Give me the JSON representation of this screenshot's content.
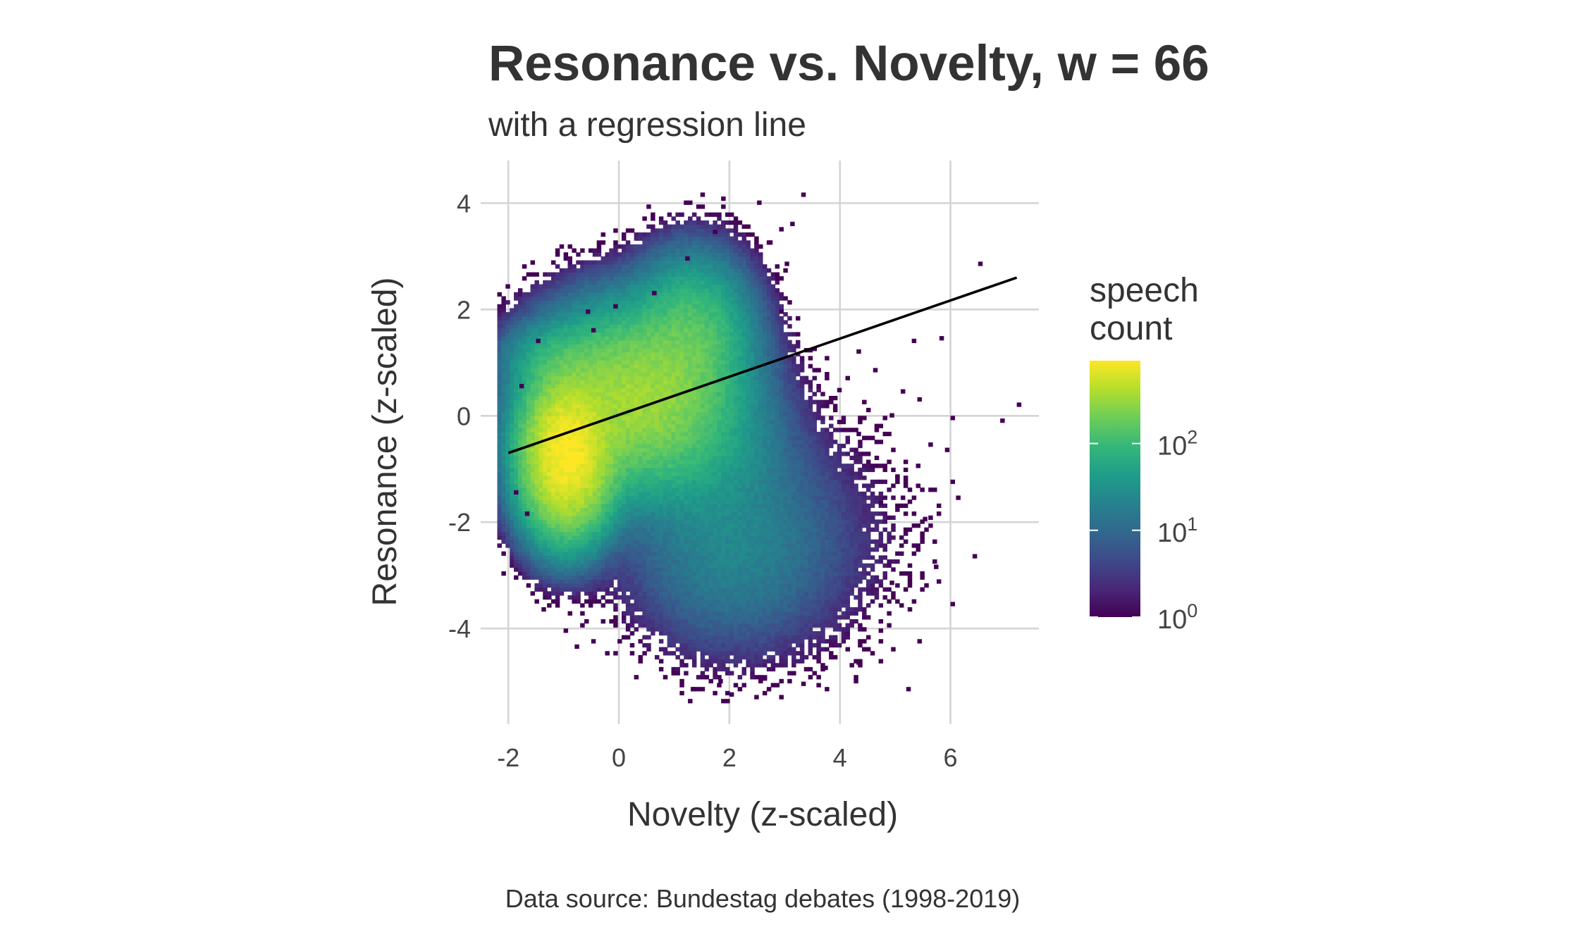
{
  "chart_data": {
    "type": "heatmap",
    "subtype": "2d-binned-density-with-regression-line",
    "title": "Resonance vs. Novelty, w = 66",
    "subtitle": "with a regression line",
    "xlabel": "Novelty (z-scaled)",
    "ylabel": "Resonance (z-scaled)",
    "caption": "Data source: Bundestag debates (1998-2019)",
    "xlim": [
      -2.5,
      7.6
    ],
    "ylim": [
      -5.8,
      4.8
    ],
    "x_ticks": [
      -2,
      0,
      2,
      4,
      6
    ],
    "x_tick_labels": [
      "-2",
      "0",
      "2",
      "4",
      "6"
    ],
    "y_ticks": [
      4,
      2,
      0,
      -2,
      -4
    ],
    "y_tick_labels": [
      "4",
      "2",
      "0",
      "-2",
      "-4"
    ],
    "grid": true,
    "fill_scale": {
      "name": "speech count",
      "name_lines": [
        "speech",
        "count"
      ],
      "palette": "viridis",
      "scale": "log10",
      "min": 1,
      "max": 900,
      "breaks": [
        1,
        10,
        100
      ],
      "break_labels": [
        {
          "base": "10",
          "exp": "0"
        },
        {
          "base": "10",
          "exp": "1"
        },
        {
          "base": "10",
          "exp": "2"
        }
      ],
      "colors": [
        "#440154",
        "#482878",
        "#3E4A89",
        "#31688E",
        "#26828E",
        "#1F9E89",
        "#35B779",
        "#6DCD59",
        "#B4DE2C",
        "#FDE725"
      ],
      "legend_position": "right"
    },
    "density_components": [
      {
        "cx": -0.95,
        "cy": -0.75,
        "sx": 0.42,
        "sy": 0.75,
        "w": 900
      },
      {
        "cx": 0.3,
        "cy": 0.35,
        "sx": 0.9,
        "sy": 0.85,
        "w": 330
      },
      {
        "cx": 1.35,
        "cy": 1.6,
        "sx": 0.55,
        "sy": 0.75,
        "w": 110
      },
      {
        "cx": -1.2,
        "cy": 1.1,
        "sx": 0.5,
        "sy": 0.35,
        "w": 35
      },
      {
        "cx": 2.0,
        "cy": -2.4,
        "sx": 1.0,
        "sy": 1.05,
        "w": 22
      },
      {
        "cx": 1.4,
        "cy": -0.6,
        "sx": 0.9,
        "sy": 0.8,
        "w": 25
      },
      {
        "cx": 3.6,
        "cy": -2.3,
        "sx": 1.2,
        "sy": 1.3,
        "w": 2.2
      }
    ],
    "outlier_points": [
      [
        3.3,
        4.2
      ],
      [
        2.5,
        4.05
      ],
      [
        3.1,
        3.65
      ],
      [
        2.9,
        3.55
      ],
      [
        6.5,
        2.9
      ],
      [
        5.3,
        1.45
      ],
      [
        5.8,
        1.5
      ],
      [
        4.3,
        1.25
      ],
      [
        4.6,
        0.9
      ],
      [
        5.1,
        0.5
      ],
      [
        5.4,
        0.35
      ],
      [
        4.9,
        0.05
      ],
      [
        6.0,
        0.0
      ],
      [
        6.9,
        -0.05
      ],
      [
        7.2,
        0.25
      ],
      [
        5.6,
        -0.5
      ],
      [
        5.9,
        -0.6
      ],
      [
        6.0,
        -1.2
      ],
      [
        5.1,
        -1.5
      ],
      [
        5.5,
        -1.9
      ],
      [
        6.1,
        -1.5
      ],
      [
        6.4,
        -2.6
      ],
      [
        5.7,
        -2.8
      ],
      [
        6.0,
        -3.5
      ],
      [
        5.4,
        -4.2
      ],
      [
        4.4,
        -4.2
      ],
      [
        4.3,
        -4.6
      ],
      [
        4.7,
        -4.0
      ],
      [
        5.2,
        -5.1
      ],
      [
        4.9,
        -3.1
      ],
      [
        3.7,
        -4.7
      ],
      [
        3.3,
        -5.0
      ],
      [
        1.3,
        -5.1
      ],
      [
        2.0,
        -5.2
      ],
      [
        1.8,
        -4.95
      ],
      [
        2.6,
        -4.9
      ],
      [
        -0.5,
        -4.2
      ],
      [
        -0.8,
        -4.3
      ],
      [
        -1.0,
        -4.0
      ],
      [
        -1.4,
        -3.6
      ],
      [
        -1.9,
        -1.4
      ],
      [
        -1.7,
        -1.8
      ],
      [
        -1.8,
        0.6
      ],
      [
        -0.5,
        1.65
      ],
      [
        -0.6,
        2.0
      ],
      [
        -0.1,
        2.1
      ],
      [
        -1.5,
        1.45
      ],
      [
        0.6,
        2.35
      ],
      [
        1.2,
        3.0
      ],
      [
        1.7,
        3.5
      ],
      [
        2.3,
        3.6
      ],
      [
        2.7,
        3.3
      ],
      [
        3.0,
        2.9
      ],
      [
        2.9,
        2.0
      ],
      [
        3.5,
        1.3
      ],
      [
        4.1,
        0.75
      ],
      [
        4.3,
        -0.3
      ],
      [
        5.0,
        -1.1
      ],
      [
        4.7,
        -1.6
      ],
      [
        5.3,
        -2.4
      ]
    ],
    "regression_line": {
      "x": [
        -2.0,
        7.2
      ],
      "y": [
        -0.7,
        2.6
      ],
      "color": "#000000"
    }
  }
}
